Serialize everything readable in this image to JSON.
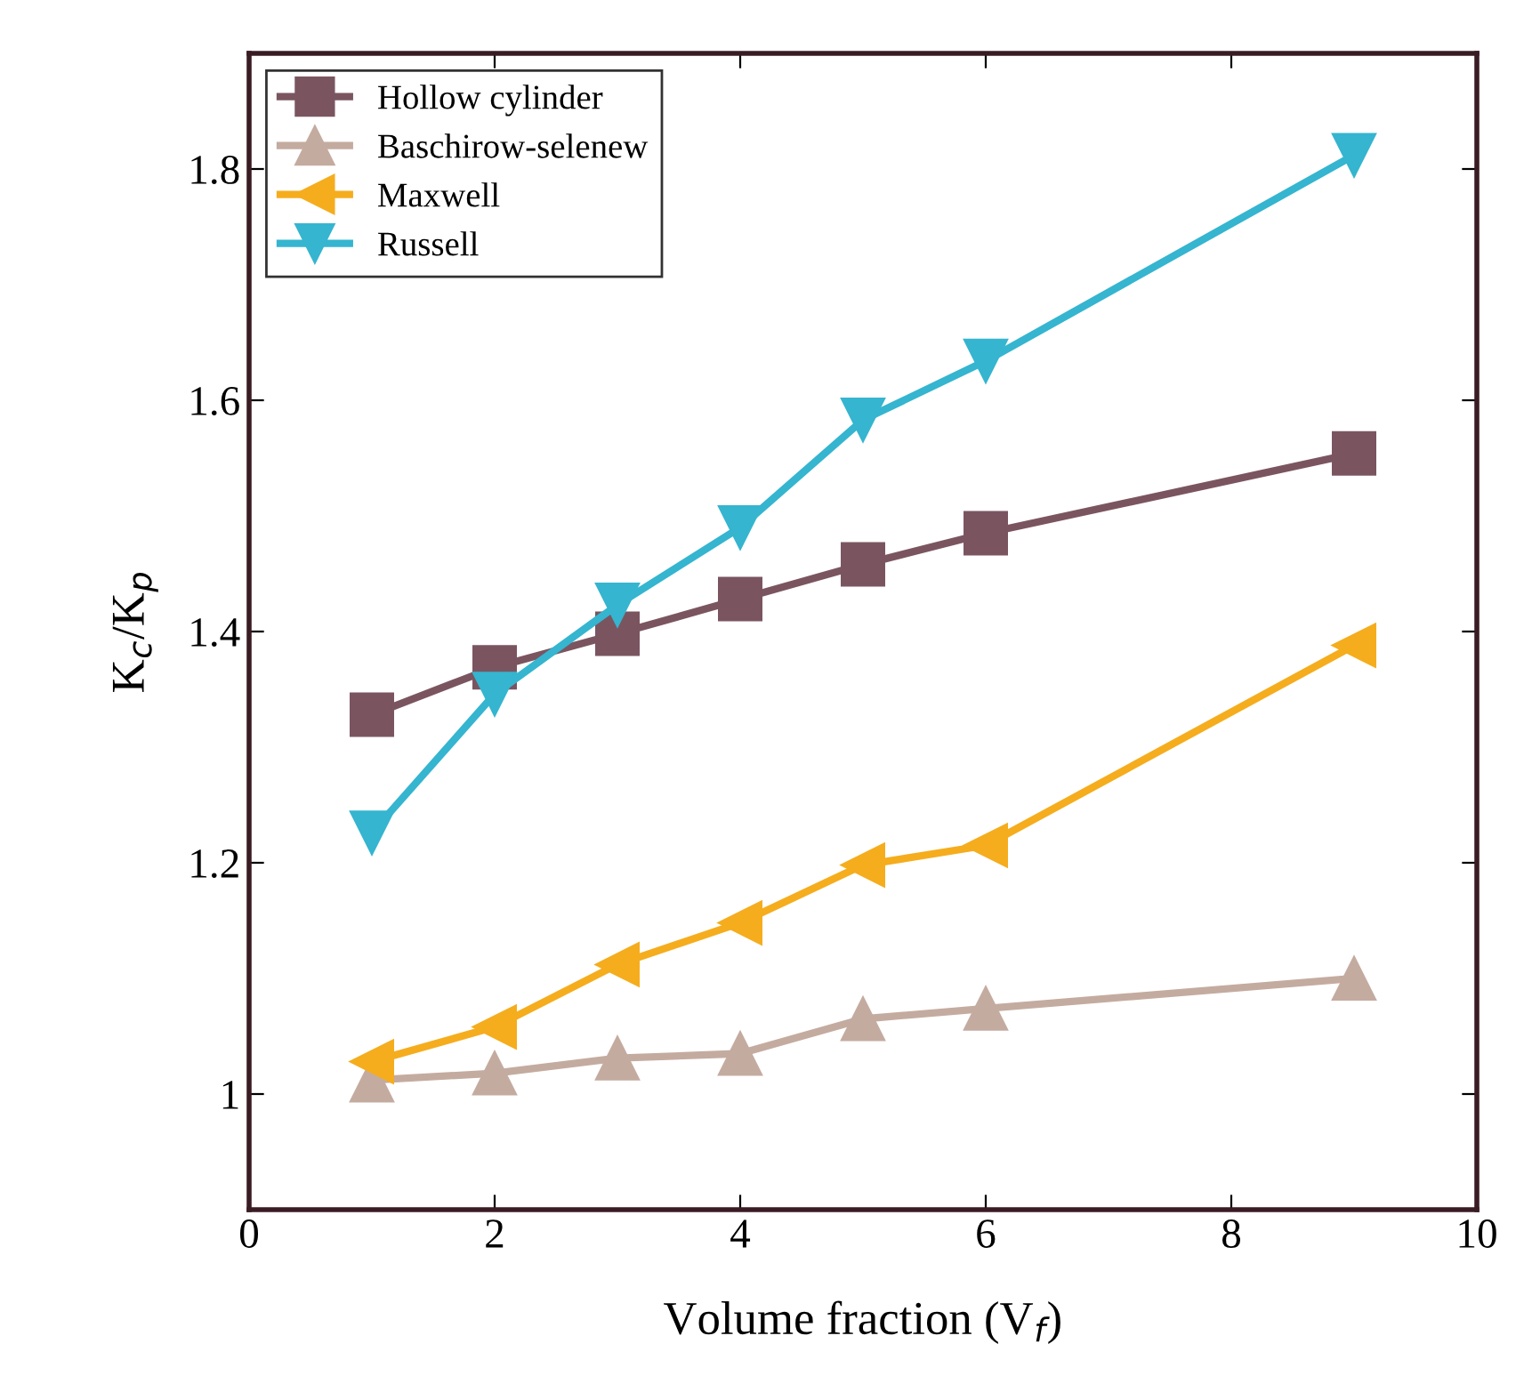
{
  "chart_data": {
    "type": "line",
    "xlabel": "Volume fraction (V$_{f}$)",
    "ylabel": "K$_{c}$/K$_{p}$",
    "x": [
      1,
      2,
      3,
      4,
      5,
      6,
      9
    ],
    "xlim": [
      0,
      10
    ],
    "xticks": [
      0,
      2,
      4,
      6,
      8,
      10
    ],
    "ylim": [
      0.9,
      1.9
    ],
    "yticks": [
      1,
      1.2,
      1.4,
      1.6,
      1.8
    ],
    "grid": false,
    "legend": "top left",
    "line_style": "solid",
    "series": [
      {
        "name": "Hollow cylinder",
        "color": "#7a5560",
        "marker": "square",
        "values": [
          1.328,
          1.369,
          1.398,
          1.428,
          1.458,
          1.485,
          1.554
        ]
      },
      {
        "name": "Baschirow-selenew",
        "color": "#c4aba0",
        "marker": "triangle",
        "values": [
          1.012,
          1.018,
          1.031,
          1.035,
          1.065,
          1.074,
          1.1
        ]
      },
      {
        "name": "Maxwell",
        "color": "#f5ad1e",
        "marker": "triangle-left",
        "values": [
          1.028,
          1.058,
          1.112,
          1.148,
          1.198,
          1.215,
          1.388
        ]
      },
      {
        "name": "Russell",
        "color": "#35b5cf",
        "marker": "triangle-down",
        "values": [
          1.226,
          1.346,
          1.423,
          1.49,
          1.583,
          1.634,
          1.812
        ]
      }
    ]
  }
}
